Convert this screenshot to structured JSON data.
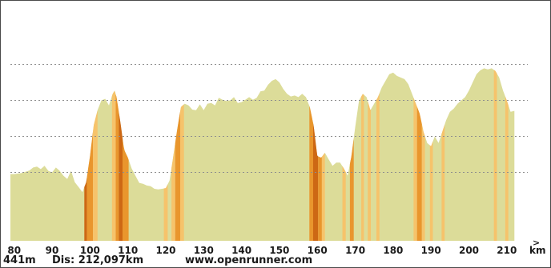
{
  "chart_data": {
    "type": "area",
    "xlabel": "km",
    "xlim": [
      79,
      213
    ],
    "ylim": [
      441,
      1150
    ],
    "x_ticks": [
      80,
      90,
      100,
      110,
      120,
      130,
      140,
      150,
      160,
      170,
      180,
      190,
      200,
      210
    ],
    "y_gridlines": [
      650,
      760,
      870,
      980
    ],
    "grid": true,
    "colors": {
      "area": "#dcdc99",
      "steep": "#f6c36b",
      "steeper": "#e9962d",
      "steepest": "#cd6814",
      "grid": "#8e8e8e"
    },
    "elevation": {
      "x": [
        79,
        80,
        82,
        84,
        85,
        86,
        87,
        88,
        89,
        90,
        91,
        92,
        93,
        94,
        95,
        96,
        97,
        98,
        99,
        100,
        101,
        102,
        103,
        104,
        105,
        106,
        106.5,
        107,
        108,
        109,
        110,
        111,
        112,
        113,
        114,
        115,
        116,
        117,
        118,
        119,
        120,
        121,
        122,
        123,
        124,
        125,
        126,
        127,
        128,
        129,
        130,
        131,
        132,
        133,
        134,
        135,
        136,
        137,
        138,
        139,
        140,
        141,
        142,
        143,
        144,
        145,
        146,
        147,
        148,
        149,
        150,
        151,
        152,
        153,
        154,
        155,
        156,
        157,
        158,
        159,
        160,
        161,
        162,
        163,
        164,
        165,
        166,
        167,
        168,
        169,
        170,
        171,
        172,
        173,
        174,
        175,
        176,
        177,
        178,
        179,
        180,
        181,
        182,
        183,
        184,
        185,
        186,
        187,
        188,
        189,
        190,
        191,
        192,
        193,
        194,
        195,
        196,
        197,
        198,
        199,
        200,
        201,
        202,
        203,
        204,
        205,
        206,
        207,
        208,
        209,
        210,
        211,
        212
      ],
      "y": [
        645,
        645,
        648,
        656,
        665,
        668,
        660,
        670,
        655,
        650,
        665,
        655,
        640,
        630,
        655,
        620,
        605,
        590,
        620,
        700,
        795,
        840,
        870,
        875,
        855,
        890,
        900,
        880,
        805,
        720,
        695,
        662,
        640,
        618,
        615,
        610,
        608,
        600,
        598,
        600,
        602,
        625,
        700,
        780,
        850,
        860,
        855,
        842,
        840,
        858,
        840,
        860,
        862,
        855,
        878,
        872,
        868,
        870,
        880,
        862,
        865,
        872,
        880,
        872,
        878,
        898,
        900,
        918,
        930,
        935,
        925,
        905,
        890,
        882,
        885,
        880,
        890,
        880,
        850,
        795,
        700,
        695,
        710,
        690,
        670,
        680,
        680,
        662,
        640,
        700,
        790,
        870,
        890,
        880,
        840,
        860,
        880,
        910,
        930,
        950,
        955,
        945,
        940,
        935,
        920,
        890,
        860,
        830,
        775,
        740,
        730,
        760,
        740,
        775,
        810,
        835,
        845,
        860,
        870,
        880,
        900,
        925,
        950,
        962,
        968,
        965,
        968,
        960,
        940,
        900,
        870,
        835,
        838
      ]
    },
    "gradient_bands": [
      {
        "from": 98.5,
        "to": 99.2,
        "level": "steepest"
      },
      {
        "from": 99.2,
        "to": 100.8,
        "level": "steeper"
      },
      {
        "from": 100.8,
        "to": 102,
        "level": "steep"
      },
      {
        "from": 105.8,
        "to": 106.8,
        "level": "steep"
      },
      {
        "from": 106.8,
        "to": 107.6,
        "level": "steeper"
      },
      {
        "from": 107.6,
        "to": 108.6,
        "level": "steepest"
      },
      {
        "from": 108.6,
        "to": 110.2,
        "level": "steeper"
      },
      {
        "from": 119.5,
        "to": 120.5,
        "level": "steep"
      },
      {
        "from": 121.5,
        "to": 122.5,
        "level": "steep"
      },
      {
        "from": 122.5,
        "to": 123.8,
        "level": "steeper"
      },
      {
        "from": 123.8,
        "to": 124.8,
        "level": "steep"
      },
      {
        "from": 157.9,
        "to": 158.9,
        "level": "steeper"
      },
      {
        "from": 158.9,
        "to": 160.2,
        "level": "steepest"
      },
      {
        "from": 160.2,
        "to": 161.2,
        "level": "steeper"
      },
      {
        "from": 161.2,
        "to": 162,
        "level": "steep"
      },
      {
        "from": 166.6,
        "to": 167.5,
        "level": "steep"
      },
      {
        "from": 168.6,
        "to": 169.6,
        "level": "steeper"
      },
      {
        "from": 171.6,
        "to": 172.3,
        "level": "steep"
      },
      {
        "from": 173.3,
        "to": 174.1,
        "level": "steep"
      },
      {
        "from": 175.6,
        "to": 176.4,
        "level": "steep"
      },
      {
        "from": 185.4,
        "to": 186.3,
        "level": "steep"
      },
      {
        "from": 186.3,
        "to": 187.6,
        "level": "steeper"
      },
      {
        "from": 187.6,
        "to": 188.4,
        "level": "steep"
      },
      {
        "from": 189.7,
        "to": 190.5,
        "level": "steep"
      },
      {
        "from": 192.8,
        "to": 193.6,
        "level": "steep"
      },
      {
        "from": 206.6,
        "to": 207.4,
        "level": "steep"
      },
      {
        "from": 209.6,
        "to": 210.4,
        "level": "steep"
      }
    ]
  },
  "footer": {
    "alt_min": "441m",
    "distance": "Dis: 212,097km",
    "watermark": "www.openrunner.com",
    "unit": "km"
  }
}
